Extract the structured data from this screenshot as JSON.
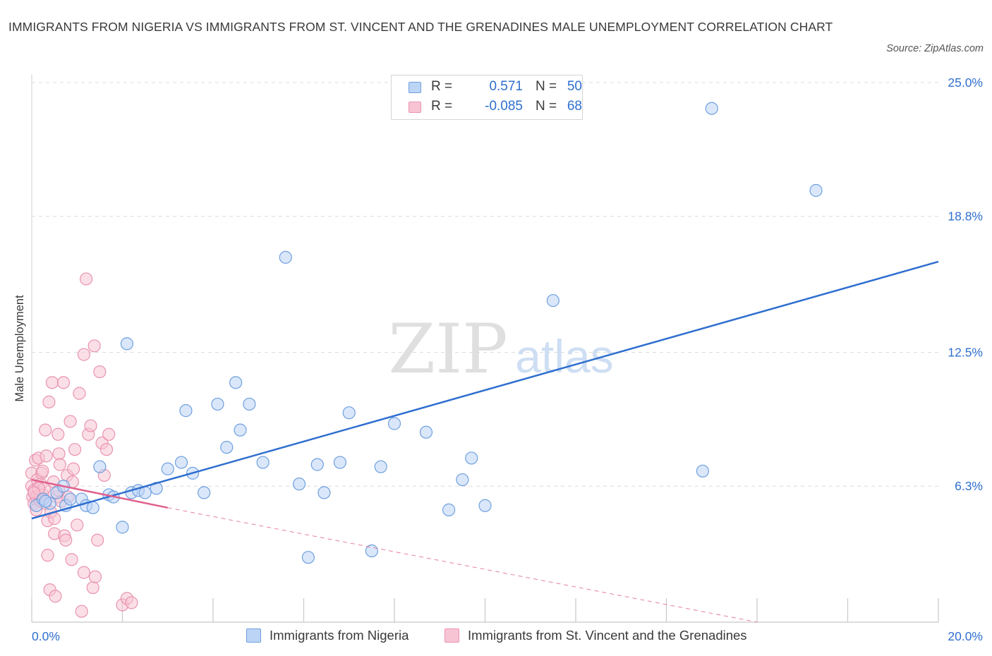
{
  "title": "IMMIGRANTS FROM NIGERIA VS IMMIGRANTS FROM ST. VINCENT AND THE GRENADINES MALE UNEMPLOYMENT CORRELATION CHART",
  "source": "Source: ZipAtlas.com",
  "watermark": {
    "zip": "ZIP",
    "atlas": "atlas"
  },
  "legend": {
    "r_label": "R =",
    "n_label": "N =",
    "series_a": {
      "r": "0.571",
      "n": "50"
    },
    "series_b": {
      "r": "-0.085",
      "n": "68"
    }
  },
  "colors": {
    "blue_fill": "#bcd4f5",
    "blue_stroke": "#6fa0df",
    "blue_line": "#2f6fcf",
    "pink_fill": "#f7c4d3",
    "pink_stroke": "#e993b0",
    "pink_line": "#e0608d",
    "grid": "#dcdcdc",
    "axis_label": "#2f6fcf"
  },
  "chart_data": {
    "type": "scatter",
    "title": "IMMIGRANTS FROM NIGERIA VS IMMIGRANTS FROM ST. VINCENT AND THE GRENADINES MALE UNEMPLOYMENT CORRELATION CHART",
    "xlabel": "",
    "ylabel": "Male Unemployment",
    "xlim": [
      0,
      20
    ],
    "ylim": [
      0,
      25
    ],
    "x_tick_labels": [
      "0.0%",
      "20.0%"
    ],
    "y_ticks": [
      6.3,
      12.5,
      18.8,
      25.0
    ],
    "y_tick_labels": [
      "6.3%",
      "12.5%",
      "18.8%",
      "25.0%"
    ],
    "grid": true,
    "legend_position": "top-center",
    "series": [
      {
        "name": "Immigrants from Nigeria",
        "r": 0.571,
        "n": 50,
        "trend": {
          "x": [
            0.0,
            20.0
          ],
          "y": [
            4.8,
            16.7
          ],
          "dashed_extension": false
        },
        "points": [
          [
            0.1,
            5.4
          ],
          [
            0.25,
            5.7
          ],
          [
            0.4,
            5.5
          ],
          [
            0.55,
            6.0
          ],
          [
            0.7,
            6.3
          ],
          [
            0.75,
            5.4
          ],
          [
            0.85,
            5.7
          ],
          [
            1.1,
            5.7
          ],
          [
            1.2,
            5.4
          ],
          [
            1.35,
            5.3
          ],
          [
            1.5,
            7.2
          ],
          [
            1.7,
            5.9
          ],
          [
            1.8,
            5.8
          ],
          [
            2.0,
            4.4
          ],
          [
            2.1,
            12.9
          ],
          [
            2.2,
            6.0
          ],
          [
            2.35,
            6.1
          ],
          [
            2.5,
            6.0
          ],
          [
            2.75,
            6.2
          ],
          [
            3.0,
            7.1
          ],
          [
            3.3,
            7.4
          ],
          [
            3.4,
            9.8
          ],
          [
            3.55,
            6.9
          ],
          [
            3.8,
            6.0
          ],
          [
            4.1,
            10.1
          ],
          [
            4.3,
            8.1
          ],
          [
            4.5,
            11.1
          ],
          [
            4.6,
            8.9
          ],
          [
            4.8,
            10.1
          ],
          [
            5.1,
            7.4
          ],
          [
            5.6,
            16.9
          ],
          [
            5.9,
            6.4
          ],
          [
            6.1,
            3.0
          ],
          [
            6.3,
            7.3
          ],
          [
            6.45,
            6.0
          ],
          [
            6.8,
            7.4
          ],
          [
            7.0,
            9.7
          ],
          [
            7.5,
            3.3
          ],
          [
            7.7,
            7.2
          ],
          [
            8.0,
            9.2
          ],
          [
            8.7,
            8.8
          ],
          [
            9.2,
            5.2
          ],
          [
            9.5,
            6.6
          ],
          [
            9.7,
            7.6
          ],
          [
            10.0,
            5.4
          ],
          [
            11.5,
            14.9
          ],
          [
            14.8,
            7.0
          ],
          [
            15.0,
            23.8
          ],
          [
            17.3,
            20.0
          ],
          [
            0.3,
            5.6
          ]
        ]
      },
      {
        "name": "Immigrants from St. Vincent and the Grenadines",
        "r": -0.085,
        "n": 68,
        "trend": {
          "x": [
            0.0,
            3.0
          ],
          "y": [
            6.6,
            5.3
          ],
          "dashed_extension": {
            "x": [
              3.0,
              16.0
            ],
            "y": [
              5.3,
              0.0
            ]
          }
        },
        "points": [
          [
            0.0,
            6.9
          ],
          [
            0.0,
            6.3
          ],
          [
            0.02,
            5.8
          ],
          [
            0.05,
            6.1
          ],
          [
            0.05,
            5.5
          ],
          [
            0.08,
            7.5
          ],
          [
            0.1,
            5.8
          ],
          [
            0.1,
            5.2
          ],
          [
            0.12,
            6.6
          ],
          [
            0.15,
            7.6
          ],
          [
            0.18,
            5.9
          ],
          [
            0.2,
            6.4
          ],
          [
            0.2,
            5.6
          ],
          [
            0.22,
            6.9
          ],
          [
            0.25,
            5.9
          ],
          [
            0.28,
            6.2
          ],
          [
            0.3,
            8.9
          ],
          [
            0.3,
            5.5
          ],
          [
            0.32,
            7.7
          ],
          [
            0.35,
            4.7
          ],
          [
            0.35,
            3.1
          ],
          [
            0.38,
            10.2
          ],
          [
            0.4,
            1.5
          ],
          [
            0.42,
            5.1
          ],
          [
            0.45,
            11.1
          ],
          [
            0.48,
            6.5
          ],
          [
            0.5,
            4.1
          ],
          [
            0.5,
            4.8
          ],
          [
            0.52,
            1.2
          ],
          [
            0.55,
            5.8
          ],
          [
            0.58,
            8.7
          ],
          [
            0.6,
            7.8
          ],
          [
            0.62,
            7.3
          ],
          [
            0.65,
            5.6
          ],
          [
            0.7,
            11.1
          ],
          [
            0.72,
            4.0
          ],
          [
            0.75,
            3.8
          ],
          [
            0.78,
            6.8
          ],
          [
            0.8,
            5.8
          ],
          [
            0.85,
            9.3
          ],
          [
            0.88,
            2.9
          ],
          [
            0.9,
            6.5
          ],
          [
            0.92,
            7.1
          ],
          [
            0.95,
            8.0
          ],
          [
            1.0,
            4.5
          ],
          [
            1.05,
            10.6
          ],
          [
            1.1,
            0.5
          ],
          [
            1.15,
            2.3
          ],
          [
            1.2,
            15.9
          ],
          [
            1.25,
            8.7
          ],
          [
            1.3,
            9.1
          ],
          [
            1.35,
            1.6
          ],
          [
            1.4,
            2.1
          ],
          [
            1.45,
            3.8
          ],
          [
            1.5,
            11.6
          ],
          [
            1.55,
            8.3
          ],
          [
            1.6,
            6.8
          ],
          [
            1.65,
            8.0
          ],
          [
            1.7,
            8.7
          ],
          [
            2.0,
            0.8
          ],
          [
            2.1,
            1.1
          ],
          [
            2.2,
            0.9
          ],
          [
            1.15,
            12.4
          ],
          [
            1.38,
            12.8
          ],
          [
            0.15,
            6.2
          ],
          [
            0.24,
            7.0
          ],
          [
            0.6,
            6.1
          ],
          [
            0.05,
            6.0
          ]
        ]
      }
    ]
  },
  "bottom_legend": {
    "series_a": "Immigrants from Nigeria",
    "series_b": "Immigrants from St. Vincent and the Grenadines"
  }
}
